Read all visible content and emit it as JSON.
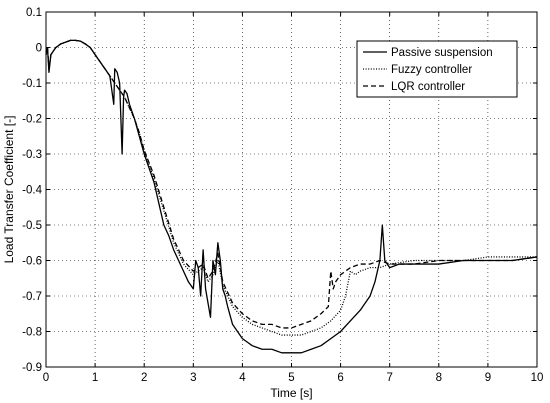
{
  "chart_data": {
    "type": "line",
    "xlabel": "Time [s]",
    "ylabel": "Load Transfer Coefficient [-]",
    "xlim": [
      0,
      10
    ],
    "ylim": [
      -0.9,
      0.1
    ],
    "xticks": [
      0,
      1,
      2,
      3,
      4,
      5,
      6,
      7,
      8,
      9,
      10
    ],
    "yticks": [
      0.1,
      0,
      -0.1,
      -0.2,
      -0.3,
      -0.4,
      -0.5,
      -0.6,
      -0.7,
      -0.8,
      -0.9
    ],
    "xtick_labels": [
      "0",
      "1",
      "2",
      "3",
      "4",
      "5",
      "6",
      "7",
      "8",
      "9",
      "10"
    ],
    "ytick_labels": [
      "0.1",
      "0",
      "-0.1",
      "-0.2",
      "-0.3",
      "-0.4",
      "-0.5",
      "-0.6",
      "-0.7",
      "-0.8",
      "-0.9"
    ],
    "grid": true,
    "legend_position": "top-right",
    "series": [
      {
        "name": "Passive suspension",
        "line_style": "solid",
        "color": "#000000",
        "x": [
          0,
          0.03,
          0.06,
          0.1,
          0.15,
          0.2,
          0.3,
          0.4,
          0.5,
          0.6,
          0.7,
          0.8,
          0.9,
          1.0,
          1.1,
          1.2,
          1.3,
          1.38,
          1.4,
          1.45,
          1.5,
          1.55,
          1.58,
          1.6,
          1.65,
          1.7,
          1.8,
          1.9,
          2.0,
          2.1,
          2.2,
          2.3,
          2.4,
          2.5,
          2.6,
          2.7,
          2.8,
          2.9,
          3.0,
          3.05,
          3.1,
          3.15,
          3.2,
          3.25,
          3.3,
          3.35,
          3.4,
          3.45,
          3.5,
          3.55,
          3.6,
          3.65,
          3.7,
          3.8,
          3.9,
          4.0,
          4.1,
          4.2,
          4.4,
          4.6,
          4.8,
          5.0,
          5.2,
          5.4,
          5.6,
          5.8,
          6.0,
          6.2,
          6.4,
          6.6,
          6.7,
          6.8,
          6.85,
          6.9,
          7.0,
          7.2,
          7.5,
          8.0,
          8.5,
          9.0,
          9.5,
          10.0
        ],
        "y": [
          -0.02,
          0.0,
          -0.07,
          -0.02,
          -0.01,
          0.0,
          0.01,
          0.015,
          0.02,
          0.02,
          0.018,
          0.01,
          0.0,
          -0.02,
          -0.04,
          -0.06,
          -0.08,
          -0.16,
          -0.06,
          -0.07,
          -0.1,
          -0.3,
          -0.14,
          -0.12,
          -0.13,
          -0.16,
          -0.2,
          -0.25,
          -0.3,
          -0.34,
          -0.38,
          -0.44,
          -0.5,
          -0.53,
          -0.57,
          -0.6,
          -0.63,
          -0.66,
          -0.68,
          -0.6,
          -0.62,
          -0.7,
          -0.57,
          -0.68,
          -0.72,
          -0.76,
          -0.6,
          -0.64,
          -0.55,
          -0.6,
          -0.68,
          -0.7,
          -0.73,
          -0.78,
          -0.8,
          -0.82,
          -0.83,
          -0.84,
          -0.85,
          -0.85,
          -0.86,
          -0.86,
          -0.86,
          -0.85,
          -0.84,
          -0.82,
          -0.8,
          -0.77,
          -0.74,
          -0.7,
          -0.66,
          -0.6,
          -0.5,
          -0.6,
          -0.62,
          -0.61,
          -0.61,
          -0.61,
          -0.6,
          -0.6,
          -0.6,
          -0.59
        ]
      },
      {
        "name": "Fuzzy controller",
        "line_style": "dotted",
        "color": "#000000",
        "x": [
          0,
          0.03,
          0.06,
          0.1,
          0.2,
          0.3,
          0.4,
          0.5,
          0.6,
          0.7,
          0.8,
          0.9,
          1.0,
          1.1,
          1.2,
          1.3,
          1.4,
          1.5,
          1.6,
          1.7,
          1.8,
          1.9,
          2.0,
          2.2,
          2.4,
          2.6,
          2.8,
          3.0,
          3.2,
          3.3,
          3.4,
          3.5,
          3.6,
          3.7,
          3.8,
          4.0,
          4.2,
          4.4,
          4.6,
          4.8,
          5.0,
          5.2,
          5.4,
          5.6,
          5.8,
          6.0,
          6.1,
          6.2,
          6.3,
          6.4,
          6.6,
          6.8,
          7.0,
          7.5,
          8.0,
          8.5,
          9.0,
          9.5,
          10.0
        ],
        "y": [
          -0.02,
          0.0,
          -0.06,
          -0.02,
          0.0,
          0.01,
          0.015,
          0.02,
          0.02,
          0.018,
          0.01,
          0.0,
          -0.02,
          -0.04,
          -0.06,
          -0.08,
          -0.1,
          -0.12,
          -0.14,
          -0.17,
          -0.2,
          -0.24,
          -0.29,
          -0.37,
          -0.46,
          -0.55,
          -0.61,
          -0.64,
          -0.62,
          -0.66,
          -0.64,
          -0.6,
          -0.67,
          -0.7,
          -0.73,
          -0.76,
          -0.78,
          -0.79,
          -0.8,
          -0.81,
          -0.81,
          -0.81,
          -0.8,
          -0.79,
          -0.77,
          -0.74,
          -0.7,
          -0.63,
          -0.64,
          -0.63,
          -0.62,
          -0.62,
          -0.61,
          -0.6,
          -0.6,
          -0.6,
          -0.59,
          -0.59,
          -0.59
        ]
      },
      {
        "name": "LQR controller",
        "line_style": "dashed",
        "color": "#000000",
        "x": [
          0,
          0.03,
          0.06,
          0.1,
          0.2,
          0.3,
          0.4,
          0.5,
          0.6,
          0.7,
          0.8,
          0.9,
          1.0,
          1.1,
          1.2,
          1.3,
          1.4,
          1.5,
          1.6,
          1.7,
          1.8,
          1.9,
          2.0,
          2.2,
          2.4,
          2.6,
          2.8,
          3.0,
          3.2,
          3.3,
          3.4,
          3.5,
          3.6,
          3.7,
          3.8,
          4.0,
          4.2,
          4.4,
          4.6,
          4.8,
          5.0,
          5.2,
          5.4,
          5.6,
          5.75,
          5.8,
          5.85,
          5.9,
          6.0,
          6.2,
          6.4,
          6.6,
          6.8,
          7.0,
          7.5,
          8.0,
          8.5,
          9.0,
          9.5,
          10.0
        ],
        "y": [
          -0.02,
          0.0,
          -0.06,
          -0.02,
          0.0,
          0.01,
          0.015,
          0.02,
          0.02,
          0.018,
          0.01,
          0.0,
          -0.02,
          -0.04,
          -0.06,
          -0.08,
          -0.1,
          -0.12,
          -0.14,
          -0.17,
          -0.2,
          -0.24,
          -0.29,
          -0.36,
          -0.45,
          -0.54,
          -0.6,
          -0.63,
          -0.61,
          -0.65,
          -0.63,
          -0.58,
          -0.66,
          -0.69,
          -0.72,
          -0.75,
          -0.77,
          -0.78,
          -0.78,
          -0.79,
          -0.79,
          -0.78,
          -0.77,
          -0.75,
          -0.73,
          -0.63,
          -0.68,
          -0.66,
          -0.64,
          -0.62,
          -0.61,
          -0.61,
          -0.6,
          -0.61,
          -0.61,
          -0.6,
          -0.6,
          -0.6,
          -0.6,
          -0.59
        ]
      }
    ]
  }
}
